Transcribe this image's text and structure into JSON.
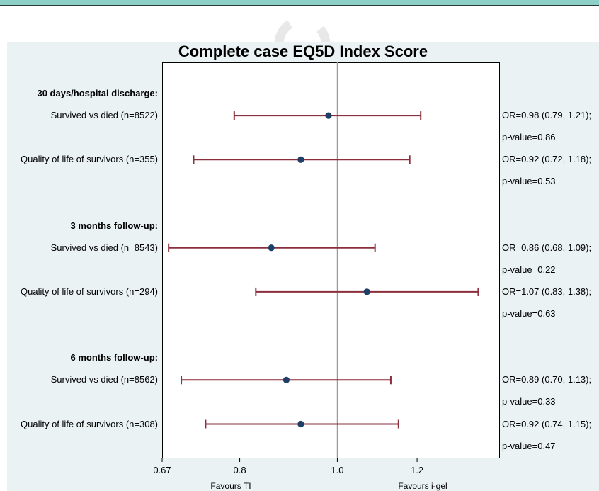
{
  "title": "Complete case EQ5D Index Score",
  "axis": {
    "ticks": [
      "0.67",
      "0.8",
      "1.0",
      "1.2"
    ],
    "left_note": "Favours TI",
    "right_note": "Favours i-gel"
  },
  "rows": [
    {
      "label": "30 days/hospital discharge:",
      "header": true
    },
    {
      "label": "Survived vs died (n=8522)",
      "or_text": "OR=0.98 (0.79, 1.21);",
      "p_text": "p-value=0.86"
    },
    {
      "label": "Quality of life of survivors (n=355)",
      "or_text": "OR=0.92 (0.72, 1.18);",
      "p_text": "p-value=0.53"
    },
    {
      "label": "3 months follow-up:",
      "header": true
    },
    {
      "label": "Survived vs died (n=8543)",
      "or_text": "OR=0.86 (0.68, 1.09);",
      "p_text": "p-value=0.22"
    },
    {
      "label": "Quality of life of survivors (n=294)",
      "or_text": "OR=1.07 (0.83, 1.38);",
      "p_text": "p-value=0.63"
    },
    {
      "label": "6 months follow-up:",
      "header": true
    },
    {
      "label": "Survived vs died (n=8562)",
      "or_text": "OR=0.89 (0.70, 1.13);",
      "p_text": "p-value=0.33"
    },
    {
      "label": "Quality of life of survivors (n=308)",
      "or_text": "OR=0.92 (0.74, 1.15);",
      "p_text": "p-value=0.47"
    }
  ],
  "chart_data": {
    "type": "forest",
    "title": "Complete case EQ5D Index Score",
    "x_scale": "log",
    "xlim": [
      0.67,
      1.45
    ],
    "x_ticks": [
      0.67,
      0.8,
      1.0,
      1.2
    ],
    "reference_line": 1.0,
    "marker_color": "#1f3f66",
    "ci_color": "#8b2f3c",
    "groups": [
      {
        "name": "30 days/hospital discharge:",
        "estimates": [
          {
            "label": "Survived vs died (n=8522)",
            "or": 0.98,
            "lower": 0.79,
            "upper": 1.21,
            "p": 0.86
          },
          {
            "label": "Quality of life of survivors (n=355)",
            "or": 0.92,
            "lower": 0.72,
            "upper": 1.18,
            "p": 0.53
          }
        ]
      },
      {
        "name": "3 months follow-up:",
        "estimates": [
          {
            "label": "Survived vs died (n=8543)",
            "or": 0.86,
            "lower": 0.68,
            "upper": 1.09,
            "p": 0.22
          },
          {
            "label": "Quality of life of survivors (n=294)",
            "or": 1.07,
            "lower": 0.83,
            "upper": 1.38,
            "p": 0.63
          }
        ]
      },
      {
        "name": "6 months follow-up:",
        "estimates": [
          {
            "label": "Survived vs died (n=8562)",
            "or": 0.89,
            "lower": 0.7,
            "upper": 1.13,
            "p": 0.33
          },
          {
            "label": "Quality of life of survivors (n=308)",
            "or": 0.92,
            "lower": 0.74,
            "upper": 1.15,
            "p": 0.47
          }
        ]
      }
    ]
  }
}
